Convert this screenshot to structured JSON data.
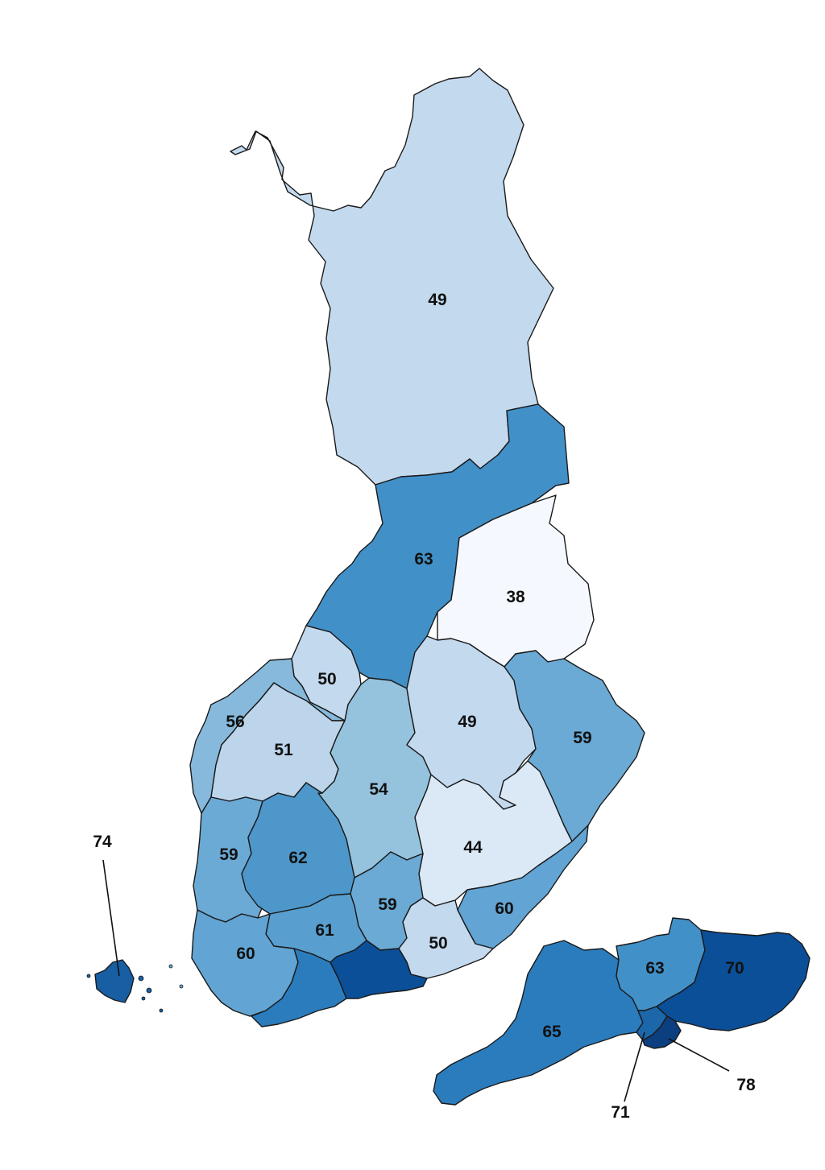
{
  "colors": {
    "v38": "#f5f9ff",
    "v44": "#dbe8f6",
    "v49": "#c3d9ee",
    "v50": "#c3d9ee",
    "v51": "#bcd5eb",
    "v54": "#95c3de",
    "v56": "#86b9db",
    "v59": "#6baad5",
    "v60": "#62a4d3",
    "v61": "#589ecf",
    "v62": "#4d97cb",
    "v63": "#4290c8",
    "v65": "#2a7cbd",
    "v70": "#0b4f98",
    "v71": "#1c66aa",
    "v74": "#175ea3",
    "v78": "#0c3f80"
  },
  "regions": [
    {
      "id": "lapland",
      "value": "49"
    },
    {
      "id": "north-ostrobothnia",
      "value": "63"
    },
    {
      "id": "kainuu",
      "value": "38"
    },
    {
      "id": "central-ostrobothnia",
      "value": "50"
    },
    {
      "id": "ostrobothnia",
      "value": "56"
    },
    {
      "id": "south-ostrobothnia",
      "value": "51"
    },
    {
      "id": "central-finland",
      "value": "54"
    },
    {
      "id": "north-savo",
      "value": "49"
    },
    {
      "id": "north-karelia",
      "value": "59"
    },
    {
      "id": "south-savo",
      "value": "44"
    },
    {
      "id": "satakunta",
      "value": "59"
    },
    {
      "id": "pirkanmaa",
      "value": "62"
    },
    {
      "id": "paijat-hame",
      "value": "59"
    },
    {
      "id": "south-karelia",
      "value": "60"
    },
    {
      "id": "kanta-hame",
      "value": "61"
    },
    {
      "id": "kymenlaakso",
      "value": "50"
    },
    {
      "id": "southwest-finland",
      "value": "60"
    },
    {
      "id": "aland",
      "value": "74"
    },
    {
      "id": "inset-west-uusimaa",
      "value": "65"
    },
    {
      "id": "inset-central-uusimaa",
      "value": "63"
    },
    {
      "id": "inset-east-uusimaa",
      "value": "70"
    },
    {
      "id": "inset-helsinki-west",
      "value": "71"
    },
    {
      "id": "inset-helsinki",
      "value": "78"
    }
  ]
}
